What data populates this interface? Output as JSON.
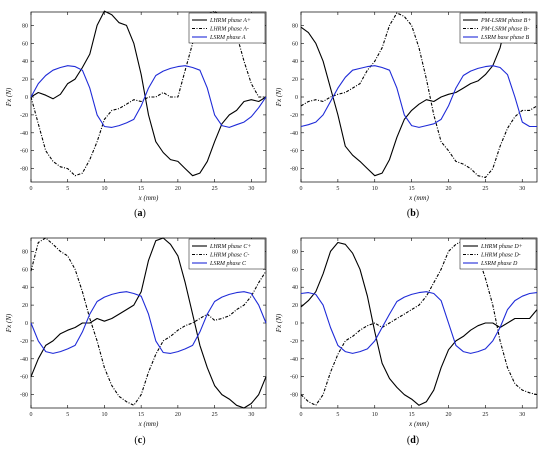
{
  "chart_data": [
    {
      "type": "line",
      "caption": "(a)",
      "xlabel": "x (mm)",
      "ylabel": "Fx (N)",
      "xlim": [
        0,
        32
      ],
      "ylim": [
        -95,
        95
      ],
      "xticks": [
        0,
        5,
        10,
        15,
        20,
        25,
        30
      ],
      "yticks": [
        -80,
        -60,
        -40,
        -20,
        0,
        20,
        40,
        60,
        80
      ],
      "legend_position": "top-right",
      "series": [
        {
          "name": "LHRM phase A+",
          "color": "#000000",
          "dash": "solid",
          "x": [
            0,
            1,
            2,
            3,
            4,
            5,
            6,
            7,
            8,
            9,
            10,
            11,
            12,
            13,
            14,
            15,
            16,
            17,
            18,
            19,
            20,
            21,
            22,
            23,
            24,
            25,
            26,
            27,
            28,
            29,
            30,
            31,
            32
          ],
          "y": [
            0,
            5,
            2,
            -2,
            3,
            15,
            20,
            33,
            48,
            80,
            96,
            92,
            83,
            80,
            60,
            25,
            -20,
            -50,
            -62,
            -70,
            -72,
            -80,
            -88,
            -85,
            -72,
            -50,
            -30,
            -20,
            -15,
            -5,
            -3,
            -5,
            0
          ]
        },
        {
          "name": "LHRM phase A-",
          "color": "#000000",
          "dash": "dashdot",
          "x": [
            0,
            1,
            2,
            3,
            4,
            5,
            6,
            7,
            8,
            9,
            10,
            11,
            12,
            13,
            14,
            15,
            16,
            17,
            18,
            19,
            20,
            21,
            22,
            23,
            24,
            25,
            26,
            27,
            28,
            29,
            30,
            31,
            32
          ],
          "y": [
            0,
            -30,
            -60,
            -72,
            -78,
            -80,
            -88,
            -85,
            -70,
            -50,
            -25,
            -15,
            -13,
            -8,
            -3,
            -5,
            0,
            0,
            5,
            0,
            0,
            30,
            60,
            82,
            92,
            96,
            88,
            82,
            70,
            40,
            15,
            0,
            0
          ]
        },
        {
          "name": "LSRM   phase A",
          "color": "#1f2bd8",
          "dash": "solid",
          "x": [
            0,
            1,
            2,
            3,
            4,
            5,
            6,
            7,
            8,
            9,
            10,
            11,
            12,
            13,
            14,
            15,
            16,
            17,
            18,
            19,
            20,
            21,
            22,
            23,
            24,
            25,
            26,
            27,
            28,
            29,
            30,
            31,
            32
          ],
          "y": [
            0,
            15,
            24,
            30,
            33,
            35,
            34,
            30,
            10,
            -20,
            -33,
            -34,
            -32,
            -29,
            -25,
            -10,
            10,
            24,
            29,
            32,
            34,
            35,
            33,
            30,
            10,
            -20,
            -32,
            -34,
            -31,
            -28,
            -22,
            -12,
            0
          ]
        }
      ]
    },
    {
      "type": "line",
      "caption": "(b)",
      "xlabel": "x (mm)",
      "ylabel": "Fx (N)",
      "xlim": [
        0,
        32
      ],
      "ylim": [
        -95,
        95
      ],
      "xticks": [
        0,
        5,
        10,
        15,
        20,
        25,
        30
      ],
      "yticks": [
        -80,
        -60,
        -40,
        -20,
        0,
        20,
        40,
        60,
        80
      ],
      "legend_position": "top-right",
      "series": [
        {
          "name": "PM-LSRM phase B+",
          "color": "#000000",
          "dash": "solid",
          "x": [
            0,
            1,
            2,
            3,
            4,
            5,
            6,
            7,
            8,
            9,
            10,
            11,
            12,
            13,
            14,
            15,
            16,
            17,
            18,
            19,
            20,
            21,
            22,
            23,
            24,
            25,
            26,
            27,
            28,
            29,
            30,
            31,
            32
          ],
          "y": [
            78,
            72,
            60,
            40,
            10,
            -20,
            -55,
            -65,
            -72,
            -80,
            -88,
            -85,
            -70,
            -45,
            -25,
            -15,
            -8,
            -3,
            -5,
            0,
            3,
            5,
            10,
            15,
            18,
            25,
            35,
            55,
            90,
            92,
            88,
            78,
            78
          ]
        },
        {
          "name": "PM-LSRM phase B-",
          "color": "#000000",
          "dash": "dashdot",
          "x": [
            0,
            1,
            2,
            3,
            4,
            5,
            6,
            7,
            8,
            9,
            10,
            11,
            12,
            13,
            14,
            15,
            16,
            17,
            18,
            19,
            20,
            21,
            22,
            23,
            24,
            25,
            26,
            27,
            28,
            29,
            30,
            31,
            32
          ],
          "y": [
            -10,
            -5,
            -3,
            -5,
            0,
            3,
            5,
            10,
            15,
            30,
            40,
            55,
            80,
            94,
            90,
            80,
            55,
            20,
            -20,
            -50,
            -60,
            -72,
            -75,
            -80,
            -88,
            -90,
            -80,
            -55,
            -35,
            -22,
            -15,
            -15,
            -10
          ]
        },
        {
          "name": "LSRM base phase B",
          "color": "#1f2bd8",
          "dash": "solid",
          "x": [
            0,
            1,
            2,
            3,
            4,
            5,
            6,
            7,
            8,
            9,
            10,
            11,
            12,
            13,
            14,
            15,
            16,
            17,
            18,
            19,
            20,
            21,
            22,
            23,
            24,
            25,
            26,
            27,
            28,
            29,
            30,
            31,
            32
          ],
          "y": [
            -33,
            -31,
            -28,
            -20,
            -5,
            10,
            22,
            30,
            32,
            34,
            35,
            33,
            30,
            10,
            -20,
            -32,
            -34,
            -32,
            -30,
            -25,
            -10,
            10,
            24,
            29,
            32,
            34,
            35,
            33,
            25,
            0,
            -28,
            -33,
            -33
          ]
        }
      ]
    },
    {
      "type": "line",
      "caption": "(c)",
      "xlabel": "x (mm)",
      "ylabel": "Fx (N)",
      "xlim": [
        0,
        32
      ],
      "ylim": [
        -95,
        95
      ],
      "xticks": [
        0,
        5,
        10,
        15,
        20,
        25,
        30
      ],
      "yticks": [
        -80,
        -60,
        -40,
        -20,
        0,
        20,
        40,
        60,
        80
      ],
      "legend_position": "top-right",
      "series": [
        {
          "name": "LHRM phase C+",
          "color": "#000000",
          "dash": "solid",
          "x": [
            0,
            1,
            2,
            3,
            4,
            5,
            6,
            7,
            8,
            9,
            10,
            11,
            12,
            13,
            14,
            15,
            16,
            17,
            18,
            19,
            20,
            21,
            22,
            23,
            24,
            25,
            26,
            27,
            28,
            29,
            30,
            31,
            32
          ],
          "y": [
            -60,
            -40,
            -25,
            -20,
            -12,
            -8,
            -5,
            0,
            0,
            5,
            2,
            5,
            10,
            15,
            20,
            35,
            70,
            92,
            95,
            88,
            75,
            45,
            10,
            -25,
            -50,
            -70,
            -80,
            -85,
            -92,
            -95,
            -90,
            -80,
            -60
          ]
        },
        {
          "name": "LHRM phase C-",
          "color": "#000000",
          "dash": "dashdot",
          "x": [
            0,
            1,
            2,
            3,
            4,
            5,
            6,
            7,
            8,
            9,
            10,
            11,
            12,
            13,
            14,
            15,
            16,
            17,
            18,
            19,
            20,
            21,
            22,
            23,
            24,
            25,
            26,
            27,
            28,
            29,
            30,
            31,
            32
          ],
          "y": [
            58,
            90,
            95,
            88,
            80,
            75,
            60,
            35,
            5,
            -20,
            -50,
            -70,
            -82,
            -88,
            -92,
            -80,
            -55,
            -35,
            -20,
            -15,
            -8,
            -3,
            0,
            5,
            10,
            3,
            5,
            8,
            15,
            20,
            30,
            45,
            58
          ]
        },
        {
          "name": "LSRM   phase C",
          "color": "#1f2bd8",
          "dash": "solid",
          "x": [
            0,
            1,
            2,
            3,
            4,
            5,
            6,
            7,
            8,
            9,
            10,
            11,
            12,
            13,
            14,
            15,
            16,
            17,
            18,
            19,
            20,
            21,
            22,
            23,
            24,
            25,
            26,
            27,
            28,
            29,
            30,
            31,
            32
          ],
          "y": [
            0,
            -20,
            -32,
            -34,
            -32,
            -29,
            -25,
            -10,
            10,
            24,
            29,
            32,
            34,
            35,
            33,
            30,
            10,
            -20,
            -33,
            -34,
            -32,
            -29,
            -25,
            -10,
            10,
            24,
            29,
            32,
            34,
            35,
            33,
            20,
            0
          ]
        }
      ]
    },
    {
      "type": "line",
      "caption": "(d)",
      "xlabel": "x (mm)",
      "ylabel": "Fx (N)",
      "xlim": [
        0,
        32
      ],
      "ylim": [
        -95,
        95
      ],
      "xticks": [
        0,
        5,
        10,
        15,
        20,
        25,
        30
      ],
      "yticks": [
        -80,
        -60,
        -40,
        -20,
        0,
        20,
        40,
        60,
        80
      ],
      "legend_position": "top-right",
      "series": [
        {
          "name": "LHRM phase D+",
          "color": "#000000",
          "dash": "solid",
          "x": [
            0,
            1,
            2,
            3,
            4,
            5,
            6,
            7,
            8,
            9,
            10,
            11,
            12,
            13,
            14,
            15,
            16,
            17,
            18,
            19,
            20,
            21,
            22,
            23,
            24,
            25,
            26,
            27,
            28,
            29,
            30,
            31,
            32
          ],
          "y": [
            18,
            25,
            35,
            55,
            80,
            90,
            88,
            78,
            60,
            30,
            -10,
            -45,
            -62,
            -72,
            -80,
            -85,
            -92,
            -88,
            -75,
            -50,
            -30,
            -20,
            -15,
            -8,
            -3,
            0,
            0,
            -5,
            0,
            5,
            5,
            5,
            15
          ]
        },
        {
          "name": "LHRM phase D-",
          "color": "#000000",
          "dash": "dashdot",
          "x": [
            0,
            1,
            2,
            3,
            4,
            5,
            6,
            7,
            8,
            9,
            10,
            11,
            12,
            13,
            14,
            15,
            16,
            17,
            18,
            19,
            20,
            21,
            22,
            23,
            24,
            25,
            26,
            27,
            28,
            29,
            30,
            31,
            32
          ],
          "y": [
            -80,
            -88,
            -92,
            -80,
            -55,
            -35,
            -20,
            -15,
            -8,
            -3,
            0,
            -5,
            0,
            5,
            10,
            15,
            20,
            30,
            45,
            60,
            80,
            88,
            92,
            88,
            75,
            50,
            20,
            -20,
            -50,
            -68,
            -75,
            -78,
            -80
          ]
        },
        {
          "name": "LSRM   phase D",
          "color": "#1f2bd8",
          "dash": "solid",
          "x": [
            0,
            1,
            2,
            3,
            4,
            5,
            6,
            7,
            8,
            9,
            10,
            11,
            12,
            13,
            14,
            15,
            16,
            17,
            18,
            19,
            20,
            21,
            22,
            23,
            24,
            25,
            26,
            27,
            28,
            29,
            30,
            31,
            32
          ],
          "y": [
            33,
            34,
            32,
            20,
            -5,
            -25,
            -32,
            -34,
            -32,
            -29,
            -20,
            -5,
            10,
            24,
            29,
            32,
            34,
            35,
            33,
            25,
            0,
            -25,
            -32,
            -34,
            -32,
            -29,
            -20,
            -5,
            15,
            25,
            30,
            33,
            34
          ]
        }
      ]
    }
  ]
}
